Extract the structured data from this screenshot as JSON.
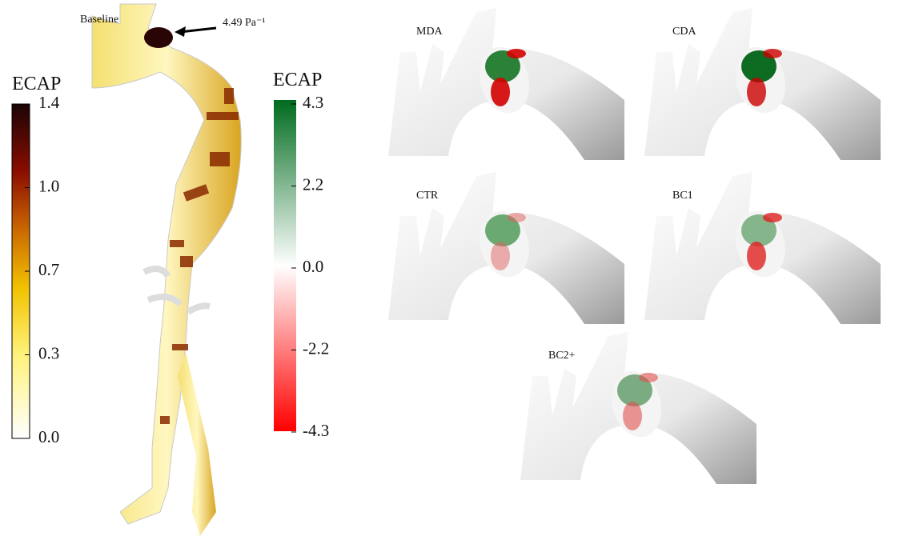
{
  "baseline": {
    "label": "Baseline",
    "annotation": "4.49 Pa⁻¹"
  },
  "colorbars": [
    {
      "title": "ECAP",
      "ticks": [
        "1.4",
        "1.0",
        "0.7",
        "0.3",
        "0.0"
      ]
    },
    {
      "title": "ECAP",
      "ticks": [
        "4.3",
        "2.2",
        "0.0",
        "-2.2",
        "-4.3"
      ]
    }
  ],
  "panels": [
    {
      "label": "MDA"
    },
    {
      "label": "CDA"
    },
    {
      "label": "CTR"
    },
    {
      "label": "BC1"
    },
    {
      "label": "BC2+"
    }
  ]
}
